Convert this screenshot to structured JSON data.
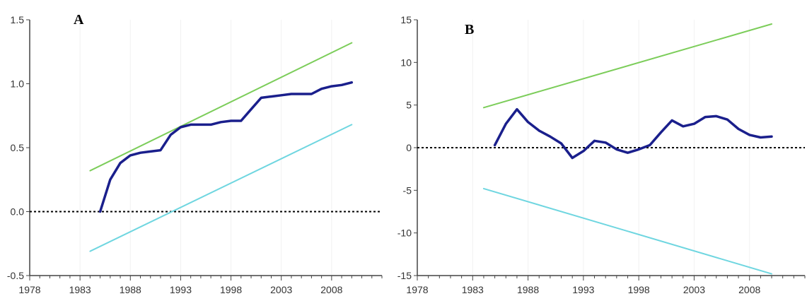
{
  "chart_data": [
    {
      "type": "line",
      "panel_label": "A",
      "xlim": [
        1978,
        2013
      ],
      "ylim": [
        -0.5,
        1.5
      ],
      "xticks": [
        "1978",
        "1983",
        "1988",
        "1993",
        "1998",
        "2003",
        "2008"
      ],
      "yticks": [
        "1.5",
        "1.0",
        "0.5",
        "0.0",
        "-0.5"
      ],
      "reference_line": {
        "y": 0,
        "style": "dotted",
        "color": "#000000"
      },
      "series": [
        {
          "color": "#7ccd5a",
          "x": [
            1984,
            2010
          ],
          "y": [
            0.32,
            1.32
          ]
        },
        {
          "color": "#1a1f8c",
          "x": [
            1985,
            1986,
            1987,
            1988,
            1989,
            1990,
            1991,
            1992,
            1993,
            1994,
            1995,
            1996,
            1997,
            1998,
            1999,
            2000,
            2001,
            2002,
            2003,
            2004,
            2005,
            2006,
            2007,
            2008,
            2009,
            2010
          ],
          "y": [
            0.0,
            0.25,
            0.38,
            0.44,
            0.46,
            0.47,
            0.48,
            0.6,
            0.66,
            0.68,
            0.68,
            0.68,
            0.7,
            0.71,
            0.71,
            0.8,
            0.89,
            0.9,
            0.91,
            0.92,
            0.92,
            0.92,
            0.96,
            0.98,
            0.99,
            1.01
          ]
        },
        {
          "color": "#6fd6e0",
          "x": [
            1984,
            2010
          ],
          "y": [
            -0.31,
            0.68
          ]
        }
      ]
    },
    {
      "type": "line",
      "panel_label": "B",
      "xlim": [
        1978,
        2013
      ],
      "ylim": [
        -15,
        15
      ],
      "xticks": [
        "1978",
        "1983",
        "1988",
        "1993",
        "1998",
        "2003",
        "2008"
      ],
      "yticks": [
        "15",
        "10",
        "5",
        "0",
        "-5",
        "-10",
        "-15"
      ],
      "reference_line": {
        "y": 0,
        "style": "dotted",
        "color": "#000000"
      },
      "series": [
        {
          "color": "#7ccd5a",
          "x": [
            1984,
            2010
          ],
          "y": [
            4.7,
            14.5
          ]
        },
        {
          "color": "#1a1f8c",
          "x": [
            1985,
            1986,
            1987,
            1988,
            1989,
            1990,
            1991,
            1992,
            1993,
            1994,
            1995,
            1996,
            1997,
            1998,
            1999,
            2000,
            2001,
            2002,
            2003,
            2004,
            2005,
            2006,
            2007,
            2008,
            2009,
            2010
          ],
          "y": [
            0.3,
            2.8,
            4.5,
            3.0,
            2.0,
            1.3,
            0.5,
            -1.2,
            -0.4,
            0.8,
            0.6,
            -0.2,
            -0.6,
            -0.2,
            0.3,
            1.8,
            3.2,
            2.5,
            2.8,
            3.6,
            3.7,
            3.3,
            2.2,
            1.5,
            1.2,
            1.3
          ]
        },
        {
          "color": "#6fd6e0",
          "x": [
            1984,
            2010
          ],
          "y": [
            -4.8,
            -14.8
          ]
        }
      ]
    }
  ]
}
